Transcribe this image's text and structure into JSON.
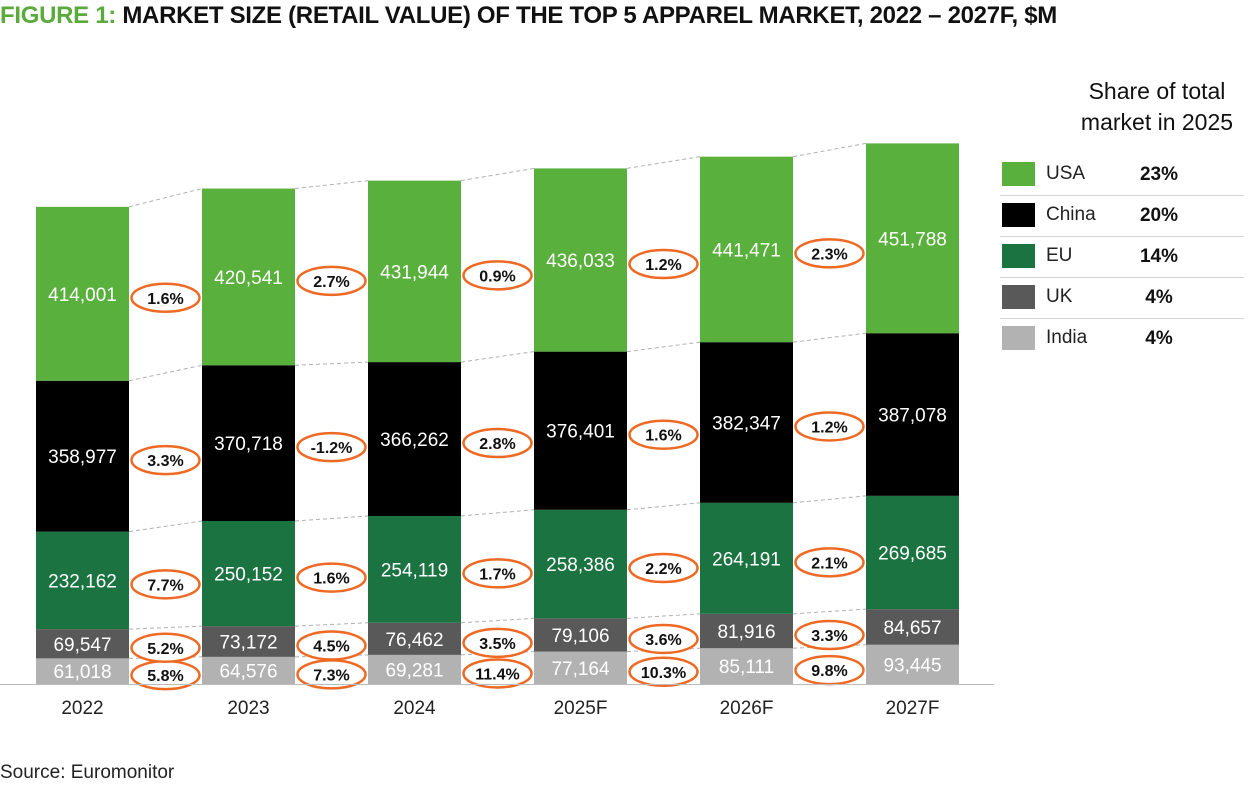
{
  "title": {
    "prefix": "FIGURE 1:",
    "main": "MARKET SIZE (RETAIL VALUE) OF THE TOP 5 APPAREL MARKET, 2022 – 2027F, $M"
  },
  "source": "Source: Euromonitor",
  "legend": {
    "title_line1": "Share of total",
    "title_line2": "market in 2025",
    "items": [
      {
        "name": "USA",
        "share": "23%"
      },
      {
        "name": "China",
        "share": "20%"
      },
      {
        "name": "EU",
        "share": "14%"
      },
      {
        "name": "UK",
        "share": "4%"
      },
      {
        "name": "India",
        "share": "4%"
      }
    ]
  },
  "colors": {
    "USA": "#5ab03c",
    "China": "#000000",
    "EU": "#1a7340",
    "UK": "#595959",
    "India": "#b2b2b2",
    "growth_ring": "#ee6a24",
    "connector": "#b0b0b0",
    "title_accent": "#5aaa3c"
  },
  "chart_data": {
    "type": "bar",
    "stacked": true,
    "categories": [
      "2022",
      "2023",
      "2024",
      "2025F",
      "2026F",
      "2027F"
    ],
    "series": [
      {
        "name": "India",
        "values": [
          61018,
          64576,
          69281,
          77164,
          85111,
          93445
        ],
        "labels": [
          "61,018",
          "64,576",
          "69,281",
          "77,164",
          "85,111",
          "93,445"
        ],
        "growth": [
          "5.8%",
          "7.3%",
          "11.4%",
          "10.3%",
          "9.8%"
        ]
      },
      {
        "name": "UK",
        "values": [
          69547,
          73172,
          76462,
          79106,
          81916,
          84657
        ],
        "labels": [
          "69,547",
          "73,172",
          "76,462",
          "79,106",
          "81,916",
          "84,657"
        ],
        "growth": [
          "5.2%",
          "4.5%",
          "3.5%",
          "3.6%",
          "3.3%"
        ]
      },
      {
        "name": "EU",
        "values": [
          232162,
          250152,
          254119,
          258386,
          264191,
          269685
        ],
        "labels": [
          "232,162",
          "250,152",
          "254,119",
          "258,386",
          "264,191",
          "269,685"
        ],
        "growth": [
          "7.7%",
          "1.6%",
          "1.7%",
          "2.2%",
          "2.1%"
        ]
      },
      {
        "name": "China",
        "values": [
          358977,
          370718,
          366262,
          376401,
          382347,
          387078
        ],
        "labels": [
          "358,977",
          "370,718",
          "366,262",
          "376,401",
          "382,347",
          "387,078"
        ],
        "growth": [
          "3.3%",
          "-1.2%",
          "2.8%",
          "1.6%",
          "1.2%"
        ]
      },
      {
        "name": "USA",
        "values": [
          414001,
          420541,
          431944,
          436033,
          441471,
          451788
        ],
        "labels": [
          "414,001",
          "420,541",
          "431,944",
          "436,033",
          "441,471",
          "451,788"
        ],
        "growth": [
          "1.6%",
          "2.7%",
          "0.9%",
          "1.2%",
          "2.3%"
        ]
      }
    ]
  }
}
